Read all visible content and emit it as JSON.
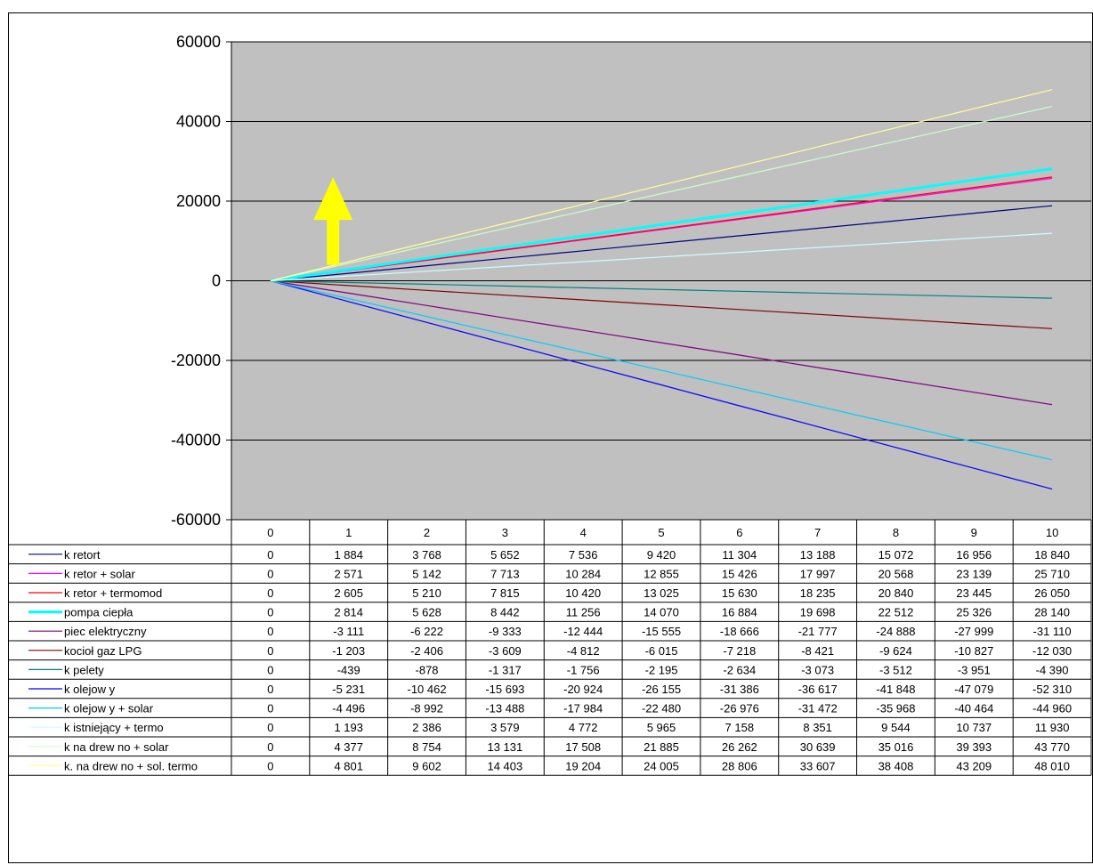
{
  "chart_data": {
    "type": "line",
    "title": "",
    "xlabel": "",
    "ylabel": "",
    "ylim": [
      -60000,
      60000
    ],
    "yticks": [
      "60000",
      "40000",
      "20000",
      "0",
      "-20000",
      "-40000",
      "-60000"
    ],
    "x": [
      "0",
      "1",
      "2",
      "3",
      "4",
      "5",
      "6",
      "7",
      "8",
      "9",
      "10"
    ],
    "grid": true,
    "background": "#c0c0c0",
    "legend": "data-table-below",
    "annotation": {
      "type": "arrow-up",
      "color": "#ffff00",
      "x_from": 1.3,
      "y_from": 4000,
      "y_to": 26000
    },
    "series": [
      {
        "name": "k  retort",
        "color": "#000080",
        "width": 1.2,
        "values": [
          0,
          1884,
          3768,
          5652,
          7536,
          9420,
          11304,
          13188,
          15072,
          16956,
          18840
        ],
        "labels": [
          "0",
          "1 884",
          "3 768",
          "5 652",
          "7 536",
          "9 420",
          "11 304",
          "13 188",
          "15 072",
          "16 956",
          "18 840"
        ]
      },
      {
        "name": "k retor + solar",
        "color": "#ff00ff",
        "width": 1.2,
        "values": [
          0,
          2571,
          5142,
          7713,
          10284,
          12855,
          15426,
          17997,
          20568,
          23139,
          25710
        ],
        "labels": [
          "0",
          "2 571",
          "5 142",
          "7 713",
          "10 284",
          "12 855",
          "15 426",
          "17 997",
          "20 568",
          "23 139",
          "25 710"
        ]
      },
      {
        "name": "k retor + termomod",
        "color": "#ff0000",
        "width": 1.2,
        "values": [
          0,
          2605,
          5210,
          7815,
          10420,
          13025,
          15630,
          18235,
          20840,
          23445,
          26050
        ],
        "labels": [
          "0",
          "2 605",
          "5 210",
          "7 815",
          "10 420",
          "13 025",
          "15 630",
          "18 235",
          "20 840",
          "23 445",
          "26 050"
        ]
      },
      {
        "name": "pompa ciepła",
        "color": "#00ffff",
        "width": 3,
        "values": [
          0,
          2814,
          5628,
          8442,
          11256,
          14070,
          16884,
          19698,
          22512,
          25326,
          28140
        ],
        "labels": [
          "0",
          "2 814",
          "5 628",
          "8 442",
          "11 256",
          "14 070",
          "16 884",
          "19 698",
          "22 512",
          "25 326",
          "28 140"
        ]
      },
      {
        "name": "piec elektryczny",
        "color": "#800080",
        "width": 1.2,
        "values": [
          0,
          -3111,
          -6222,
          -9333,
          -12444,
          -15555,
          -18666,
          -21777,
          -24888,
          -27999,
          -31110
        ],
        "labels": [
          "0",
          "-3 111",
          "-6 222",
          "-9 333",
          "-12 444",
          "-15 555",
          "-18 666",
          "-21 777",
          "-24 888",
          "-27 999",
          "-31 110"
        ]
      },
      {
        "name": "kocioł gaz LPG",
        "color": "#800000",
        "width": 1.2,
        "values": [
          0,
          -1203,
          -2406,
          -3609,
          -4812,
          -6015,
          -7218,
          -8421,
          -9624,
          -10827,
          -12030
        ],
        "labels": [
          "0",
          "-1 203",
          "-2 406",
          "-3 609",
          "-4 812",
          "-6 015",
          "-7 218",
          "-8 421",
          "-9 624",
          "-10 827",
          "-12 030"
        ]
      },
      {
        "name": "k pelety",
        "color": "#008080",
        "width": 1.2,
        "values": [
          0,
          -439,
          -878,
          -1317,
          -1756,
          -2195,
          -2634,
          -3073,
          -3512,
          -3951,
          -4390
        ],
        "labels": [
          "0",
          "-439",
          "-878",
          "-1 317",
          "-1 756",
          "-2 195",
          "-2 634",
          "-3 073",
          "-3 512",
          "-3 951",
          "-4 390"
        ]
      },
      {
        "name": "k olejow y",
        "color": "#0000ff",
        "width": 1.2,
        "values": [
          0,
          -5231,
          -10462,
          -15693,
          -20924,
          -26155,
          -31386,
          -36617,
          -41848,
          -47079,
          -52310
        ],
        "labels": [
          "0",
          "-5 231",
          "-10 462",
          "-15 693",
          "-20 924",
          "-26 155",
          "-31 386",
          "-36 617",
          "-41 848",
          "-47 079",
          "-52 310"
        ]
      },
      {
        "name": "k olejow y + solar",
        "color": "#00ccff",
        "width": 1.2,
        "values": [
          0,
          -4496,
          -8992,
          -13488,
          -17984,
          -22480,
          -26976,
          -31472,
          -35968,
          -40464,
          -44960
        ],
        "labels": [
          "0",
          "-4 496",
          "-8 992",
          "-13 488",
          "-17 984",
          "-22 480",
          "-26 976",
          "-31 472",
          "-35 968",
          "-40 464",
          "-44 960"
        ]
      },
      {
        "name": "k istniejący + termo",
        "color": "#ccffff",
        "width": 1.2,
        "values": [
          0,
          1193,
          2386,
          3579,
          4772,
          5965,
          7158,
          8351,
          9544,
          10737,
          11930
        ],
        "labels": [
          "0",
          "1 193",
          "2 386",
          "3 579",
          "4 772",
          "5 965",
          "7 158",
          "8 351",
          "9 544",
          "10 737",
          "11 930"
        ]
      },
      {
        "name": "k na drew no + solar",
        "color": "#ccffcc",
        "width": 1.2,
        "values": [
          0,
          4377,
          8754,
          13131,
          17508,
          21885,
          26262,
          30639,
          35016,
          39393,
          43770
        ],
        "labels": [
          "0",
          "4 377",
          "8 754",
          "13 131",
          "17 508",
          "21 885",
          "26 262",
          "30 639",
          "35 016",
          "39 393",
          "43 770"
        ]
      },
      {
        "name": "k. na drew no + sol. termo",
        "color": "#ffff99",
        "width": 1.2,
        "values": [
          0,
          4801,
          9602,
          14403,
          19204,
          24005,
          28806,
          33607,
          38408,
          43209,
          48010
        ],
        "labels": [
          "0",
          "4 801",
          "9 602",
          "14 403",
          "19 204",
          "24 005",
          "28 806",
          "33 607",
          "38 408",
          "43 209",
          "48 010"
        ]
      }
    ]
  }
}
